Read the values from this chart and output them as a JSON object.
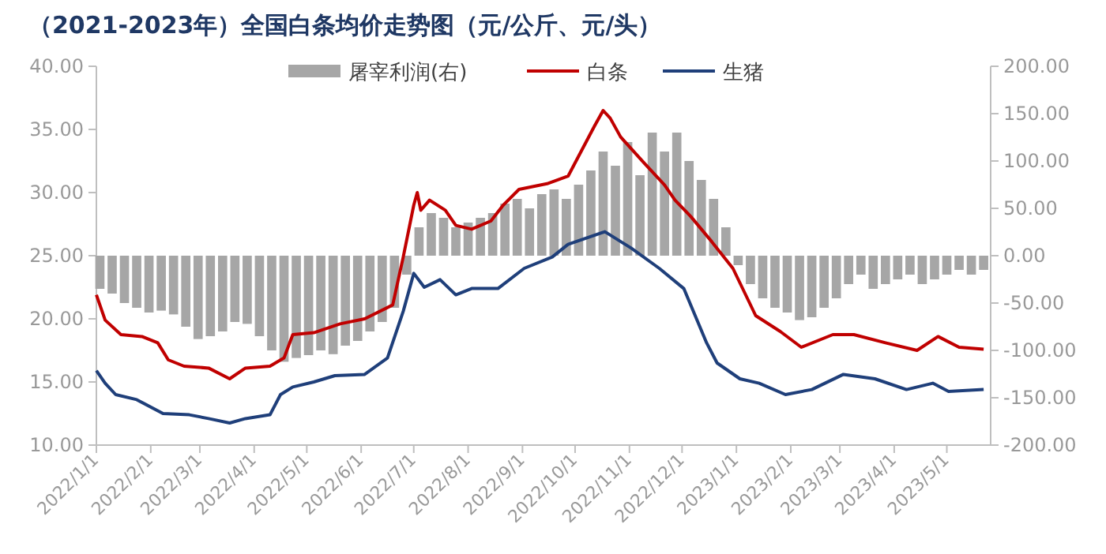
{
  "chart_data": {
    "type": "line",
    "title": "（2021-2023年）全国白条均价走势图（元/公斤、元/头）",
    "legend": "top",
    "xlim": [
      "2022-01-01",
      "2023-05-26"
    ],
    "xticks": [
      {
        "value": "2022-01-01",
        "label": "2022/1/1"
      },
      {
        "value": "2022-02-01",
        "label": "2022/2/1"
      },
      {
        "value": "2022-03-01",
        "label": "2022/3/1"
      },
      {
        "value": "2022-04-01",
        "label": "2022/4/1"
      },
      {
        "value": "2022-05-01",
        "label": "2022/5/1"
      },
      {
        "value": "2022-06-01",
        "label": "2022/6/1"
      },
      {
        "value": "2022-07-01",
        "label": "2022/7/1"
      },
      {
        "value": "2022-08-01",
        "label": "2022/8/1"
      },
      {
        "value": "2022-09-01",
        "label": "2022/9/1"
      },
      {
        "value": "2022-10-01",
        "label": "2022/10/1"
      },
      {
        "value": "2022-11-01",
        "label": "2022/11/1"
      },
      {
        "value": "2022-12-01",
        "label": "2022/12/1"
      },
      {
        "value": "2023-01-01",
        "label": "2023/1/1"
      },
      {
        "value": "2023-02-01",
        "label": "2023/2/1"
      },
      {
        "value": "2023-03-01",
        "label": "2023/3/1"
      },
      {
        "value": "2023-04-01",
        "label": "2023/4/1"
      },
      {
        "value": "2023-05-01",
        "label": "2023/5/1"
      }
    ],
    "ylim": [
      10,
      40
    ],
    "yticks": [
      {
        "value": 10,
        "label": "10.00"
      },
      {
        "value": 15,
        "label": "15.00"
      },
      {
        "value": 20,
        "label": "20.00"
      },
      {
        "value": 25,
        "label": "25.00"
      },
      {
        "value": 30,
        "label": "30.00"
      },
      {
        "value": 35,
        "label": "35.00"
      },
      {
        "value": 40,
        "label": "40.00"
      }
    ],
    "y2lim": [
      -200,
      200
    ],
    "y2ticks": [
      {
        "value": -200,
        "label": "-200.00"
      },
      {
        "value": -150,
        "label": "-150.00"
      },
      {
        "value": -100,
        "label": "-100.00"
      },
      {
        "value": -50,
        "label": "-50.00"
      },
      {
        "value": 0,
        "label": "0.00"
      },
      {
        "value": 50,
        "label": "50.00"
      },
      {
        "value": 100,
        "label": "100.00"
      },
      {
        "value": 150,
        "label": "150.00"
      },
      {
        "value": 200,
        "label": "200.00"
      }
    ],
    "series": [
      {
        "name": "屠宰利润(右)",
        "type": "bar",
        "axis": "y2",
        "color": "#a6a6a6",
        "x": [
          "2022-01-03",
          "2022-01-10",
          "2022-01-17",
          "2022-01-24",
          "2022-01-31",
          "2022-02-07",
          "2022-02-14",
          "2022-02-21",
          "2022-02-28",
          "2022-03-07",
          "2022-03-14",
          "2022-03-21",
          "2022-03-28",
          "2022-04-04",
          "2022-04-11",
          "2022-04-18",
          "2022-04-25",
          "2022-05-02",
          "2022-05-09",
          "2022-05-16",
          "2022-05-23",
          "2022-05-30",
          "2022-06-06",
          "2022-06-13",
          "2022-06-20",
          "2022-06-27",
          "2022-07-04",
          "2022-07-11",
          "2022-07-18",
          "2022-07-25",
          "2022-08-01",
          "2022-08-08",
          "2022-08-15",
          "2022-08-22",
          "2022-08-29",
          "2022-09-05",
          "2022-09-12",
          "2022-09-19",
          "2022-09-26",
          "2022-10-03",
          "2022-10-10",
          "2022-10-17",
          "2022-10-24",
          "2022-10-31",
          "2022-11-07",
          "2022-11-14",
          "2022-11-21",
          "2022-11-28",
          "2022-12-05",
          "2022-12-12",
          "2022-12-19",
          "2022-12-26",
          "2023-01-02",
          "2023-01-09",
          "2023-01-16",
          "2023-01-23",
          "2023-01-30",
          "2023-02-06",
          "2023-02-13",
          "2023-02-20",
          "2023-02-27",
          "2023-03-06",
          "2023-03-13",
          "2023-03-20",
          "2023-03-27",
          "2023-04-03",
          "2023-04-10",
          "2023-04-17",
          "2023-04-24",
          "2023-05-01",
          "2023-05-08",
          "2023-05-15",
          "2023-05-22"
        ],
        "values": [
          -35,
          -40,
          -50,
          -55,
          -60,
          -58,
          -62,
          -75,
          -88,
          -85,
          -80,
          -70,
          -72,
          -85,
          -100,
          -112,
          -108,
          -105,
          -100,
          -104,
          -95,
          -90,
          -80,
          -70,
          -55,
          -20,
          30,
          45,
          40,
          30,
          35,
          40,
          45,
          55,
          60,
          50,
          65,
          70,
          60,
          75,
          90,
          110,
          95,
          120,
          85,
          130,
          110,
          130,
          100,
          80,
          60,
          30,
          -10,
          -30,
          -45,
          -55,
          -60,
          -68,
          -65,
          -55,
          -45,
          -30,
          -20,
          -35,
          -30,
          -25,
          -20,
          -30,
          -25,
          -20,
          -15,
          -20,
          -15
        ]
      },
      {
        "name": "白条",
        "color": "#c00000",
        "x": [
          "2022-01-01",
          "2022-01-06",
          "2022-01-15",
          "2022-01-27",
          "2022-02-05",
          "2022-02-11",
          "2022-02-20",
          "2022-03-06",
          "2022-03-18",
          "2022-03-27",
          "2022-04-10",
          "2022-04-18",
          "2022-04-23",
          "2022-05-05",
          "2022-05-20",
          "2022-06-03",
          "2022-06-19",
          "2022-06-25",
          "2022-07-01",
          "2022-07-03",
          "2022-07-05",
          "2022-07-10",
          "2022-07-19",
          "2022-07-25",
          "2022-08-03",
          "2022-08-14",
          "2022-08-21",
          "2022-08-30",
          "2022-09-15",
          "2022-09-27",
          "2022-10-12",
          "2022-10-17",
          "2022-10-21",
          "2022-10-27",
          "2022-11-09",
          "2022-11-21",
          "2022-11-27",
          "2022-12-06",
          "2022-12-18",
          "2022-12-30",
          "2023-01-12",
          "2023-01-26",
          "2023-02-07",
          "2023-02-25",
          "2023-03-09",
          "2023-03-27",
          "2023-04-14",
          "2023-04-26",
          "2023-05-08",
          "2023-05-22"
        ],
        "values": [
          21.9,
          19.9,
          18.75,
          18.6,
          18.1,
          16.75,
          16.25,
          16.1,
          15.25,
          16.1,
          16.25,
          16.9,
          18.75,
          18.9,
          19.6,
          20.0,
          21.1,
          24.9,
          29.0,
          30.0,
          28.6,
          29.4,
          28.6,
          27.4,
          27.1,
          27.75,
          29.0,
          30.25,
          30.7,
          31.3,
          35.25,
          36.5,
          35.9,
          34.4,
          32.4,
          30.6,
          29.4,
          28.1,
          26.1,
          24.0,
          20.25,
          19.0,
          17.75,
          18.75,
          18.75,
          18.1,
          17.5,
          18.6,
          17.75,
          17.6
        ]
      },
      {
        "name": "生猪",
        "color": "#1f3f7a",
        "x": [
          "2022-01-01",
          "2022-01-06",
          "2022-01-12",
          "2022-01-24",
          "2022-02-08",
          "2022-02-23",
          "2022-03-06",
          "2022-03-18",
          "2022-03-27",
          "2022-04-10",
          "2022-04-16",
          "2022-04-23",
          "2022-05-05",
          "2022-05-17",
          "2022-06-03",
          "2022-06-16",
          "2022-06-25",
          "2022-07-01",
          "2022-07-07",
          "2022-07-16",
          "2022-07-25",
          "2022-08-03",
          "2022-08-18",
          "2022-09-02",
          "2022-09-18",
          "2022-09-27",
          "2022-10-18",
          "2022-11-02",
          "2022-11-18",
          "2022-12-02",
          "2022-12-15",
          "2022-12-21",
          "2023-01-03",
          "2023-01-14",
          "2023-01-29",
          "2023-02-13",
          "2023-03-03",
          "2023-03-21",
          "2023-04-08",
          "2023-04-23",
          "2023-05-02",
          "2023-05-22"
        ],
        "values": [
          15.9,
          14.9,
          14.0,
          13.6,
          12.5,
          12.4,
          12.1,
          11.75,
          12.1,
          12.4,
          14.0,
          14.6,
          15.0,
          15.5,
          15.6,
          16.9,
          20.6,
          23.6,
          22.5,
          23.1,
          21.9,
          22.4,
          22.4,
          24.0,
          24.9,
          25.9,
          26.9,
          25.6,
          24.0,
          22.4,
          18.1,
          16.5,
          15.25,
          14.9,
          14.0,
          14.4,
          15.6,
          15.25,
          14.4,
          14.9,
          14.25,
          14.4
        ]
      }
    ]
  }
}
